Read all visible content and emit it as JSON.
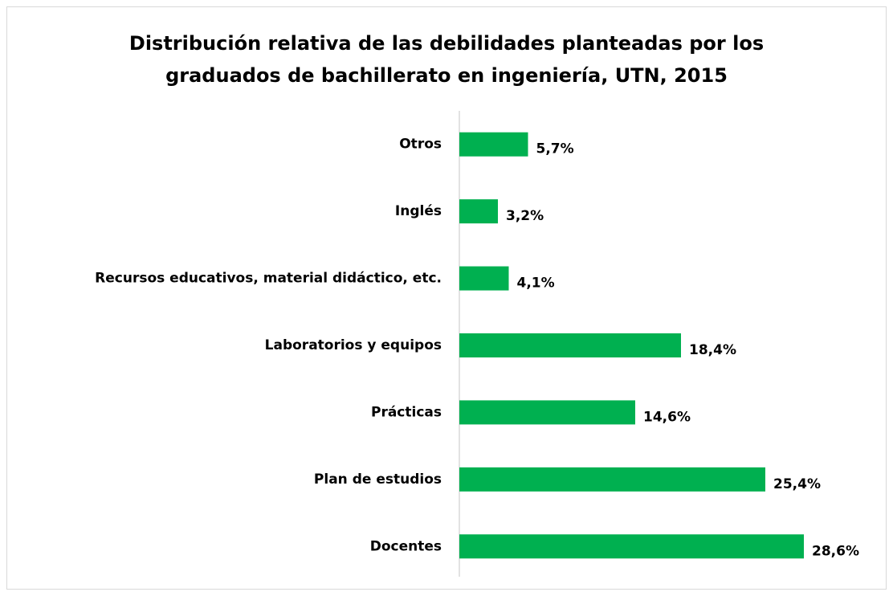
{
  "chart_data": {
    "type": "bar",
    "orientation": "horizontal",
    "title": [
      "Distribución relativa de las debilidades planteadas por los",
      "graduados de bachillerato en ingeniería, UTN, 2015"
    ],
    "categories": [
      "Otros",
      "Inglés",
      "Recursos educativos, material didáctico, etc.",
      "Laboratorios y equipos",
      "Prácticas",
      "Plan de estudios",
      "Docentes"
    ],
    "values": [
      5.7,
      3.2,
      4.1,
      18.4,
      14.6,
      25.4,
      28.6
    ],
    "value_labels": [
      "5,7%",
      "3,2%",
      "4,1%",
      "18,4%",
      "14,6%",
      "25,4%",
      "28,6%"
    ],
    "color": "#00b050"
  }
}
